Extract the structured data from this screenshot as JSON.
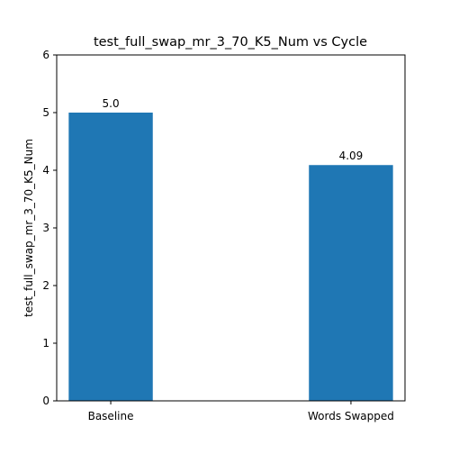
{
  "chart_data": {
    "type": "bar",
    "title": "test_full_swap_mr_3_70_K5_Num vs Cycle",
    "xlabel": "",
    "ylabel": "test_full_swap_mr_3_70_K5_Num",
    "categories": [
      "Baseline",
      "Words Swapped"
    ],
    "values": [
      5.0,
      4.09
    ],
    "value_labels": [
      "5.0",
      "4.09"
    ],
    "ylim": [
      0,
      6
    ],
    "yticks": [
      0,
      1,
      2,
      3,
      4,
      5,
      6
    ],
    "bar_color": "#1f77b4",
    "grid": false,
    "legend": "none"
  }
}
